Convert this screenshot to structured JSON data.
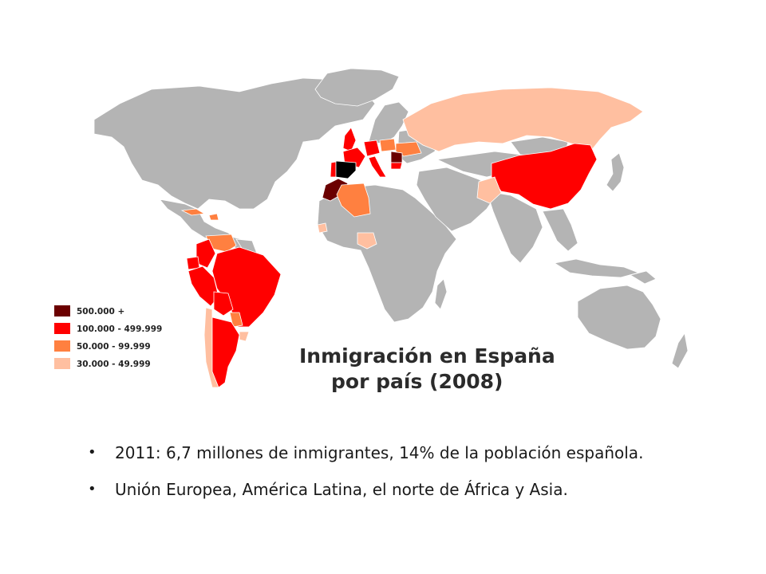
{
  "map": {
    "title_line1": "Inmigración en España",
    "title_line2": "por país (2008)",
    "legend": [
      {
        "label": "500.000 +",
        "color": "#6b0000"
      },
      {
        "label": "100.000 - 499.999",
        "color": "#ff0000"
      },
      {
        "label": "50.000 -  99.999",
        "color": "#ff8040"
      },
      {
        "label": "30.000 -  49.999",
        "color": "#ffbfa0"
      }
    ],
    "colors": {
      "no_data": "#b4b4b4",
      "spain": "#000000",
      "border": "#ffffff"
    },
    "country_categories": {
      "Morocco": "500.000 +",
      "Romania": "500.000 +",
      "United Kingdom": "100.000 - 499.999",
      "Germany": "100.000 - 499.999",
      "Italy": "100.000 - 499.999",
      "Portugal": "100.000 - 499.999",
      "France": "100.000 - 499.999",
      "Bulgaria": "100.000 - 499.999",
      "China": "100.000 - 499.999",
      "Colombia": "100.000 - 499.999",
      "Ecuador": "100.000 - 499.999",
      "Peru": "100.000 - 499.999",
      "Bolivia": "100.000 - 499.999",
      "Argentina": "100.000 - 499.999",
      "Brazil": "100.000 - 499.999",
      "Algeria": "50.000 -  99.999",
      "Venezuela": "50.000 -  99.999",
      "Paraguay": "50.000 -  99.999",
      "Dominican Republic": "50.000 -  99.999",
      "Cuba": "50.000 -  99.999",
      "Ukraine": "50.000 -  99.999",
      "Poland": "50.000 -  99.999",
      "Russia": "30.000 -  49.999",
      "Pakistan": "30.000 -  49.999",
      "Nigeria": "30.000 -  49.999",
      "Uruguay": "30.000 -  49.999",
      "Chile": "30.000 -  49.999",
      "Senegal": "30.000 -  49.999"
    }
  },
  "bullets": [
    {
      "text": "2011: 6,7 millones de inmigrantes, 14% de la población española."
    },
    {
      "text": "Unión Europea, América Latina, el norte de África y Asia."
    }
  ]
}
